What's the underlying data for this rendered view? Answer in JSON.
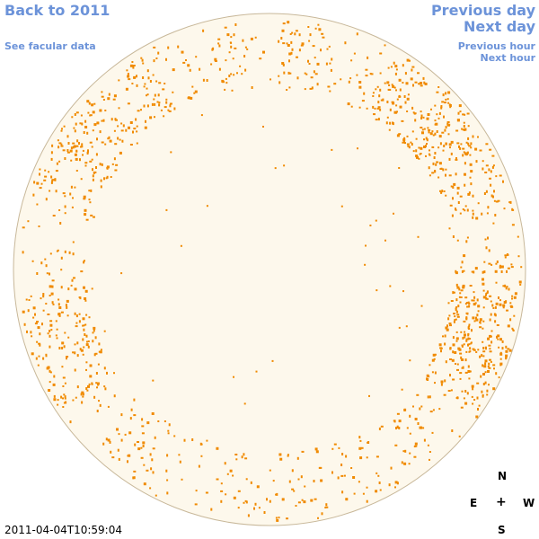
{
  "nav": {
    "back_label": "Back to 2011",
    "facular_label": "See facular data",
    "previous_day_label": "Previous day",
    "next_day_label": "Next day",
    "previous_hour_label": "Previous hour",
    "next_hour_label": "Next hour"
  },
  "compass": {
    "north": "N",
    "east": "E",
    "center": "+",
    "west": "W",
    "south": "S"
  },
  "timestamp": "2011-04-04T10:59:04",
  "colors": {
    "link": "#6c93d9",
    "disk_fill": "#fdf8ec",
    "disk_edge": "#c8b89a",
    "facula": "#f08a00"
  }
}
